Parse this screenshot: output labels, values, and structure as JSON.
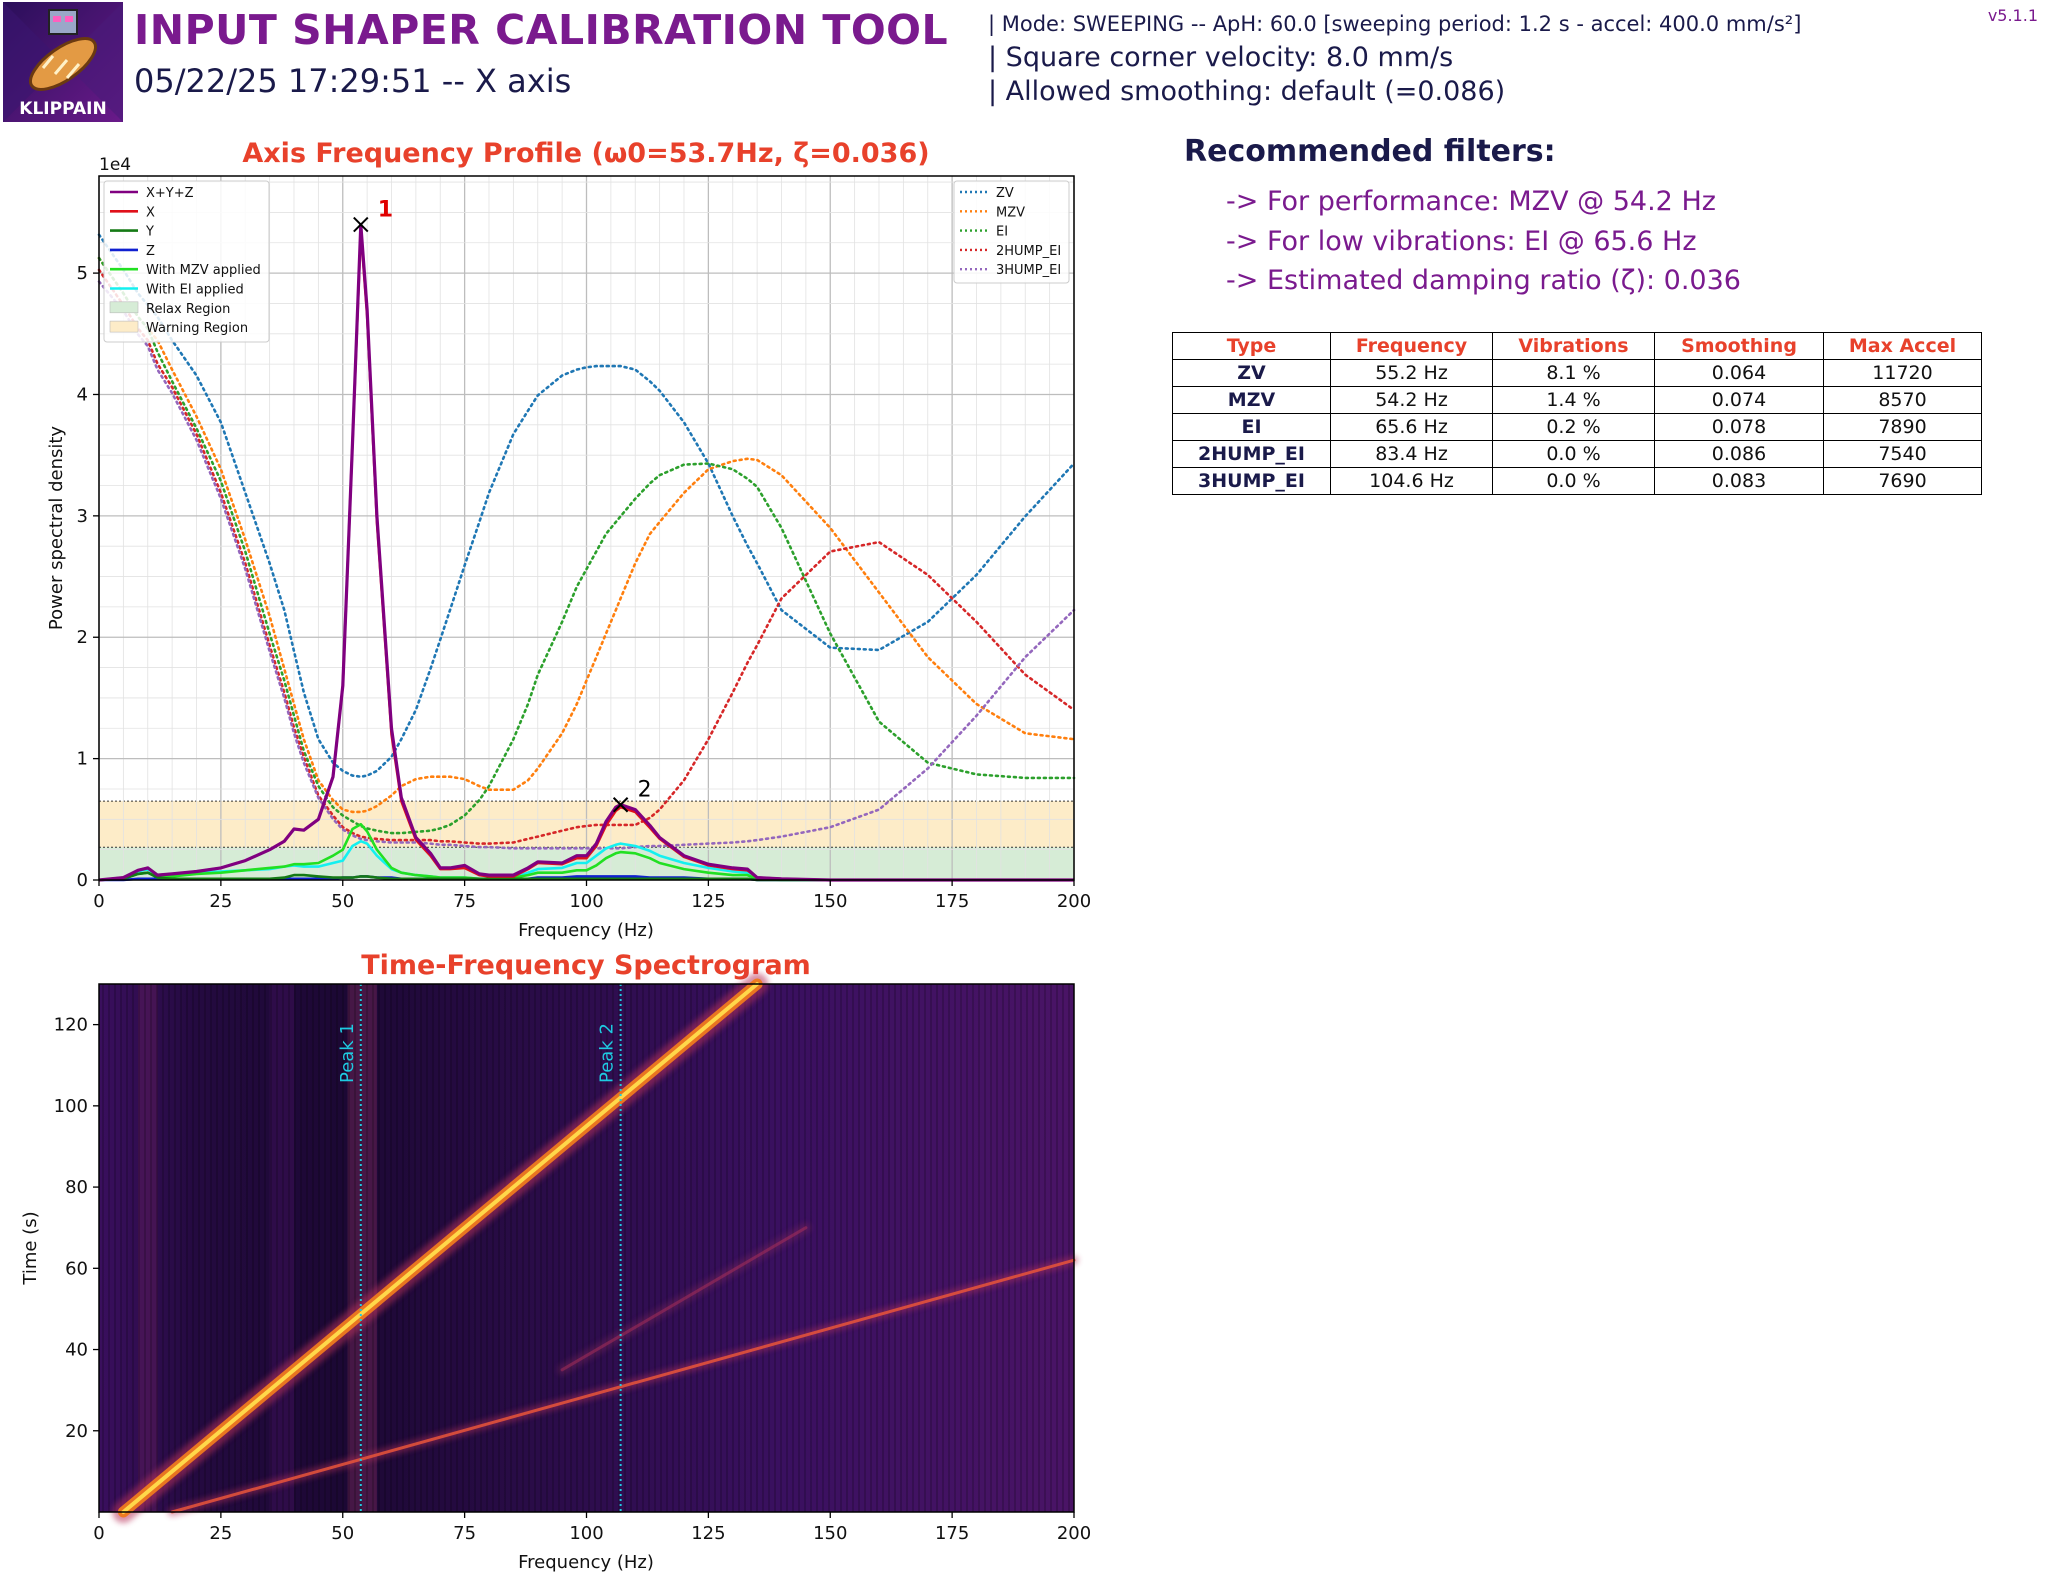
{
  "header": {
    "title": "INPUT SHAPER CALIBRATION TOOL",
    "subtitle": "05/22/25 17:29:51 -- X axis",
    "version": "v5.1.1",
    "logo_text": "KLIPPAIN",
    "mode_line": "| Mode: SWEEPING -- ApH: 60.0 [sweeping period: 1.2 s - accel: 400.0 mm/s²]",
    "scv_line": "| Square corner velocity: 8.0 mm/s",
    "smoothing_line": "| Allowed smoothing: default (=0.086)"
  },
  "recommendations": {
    "title": "Recommended filters:",
    "performance": "-> For performance: MZV @ 54.2 Hz",
    "low_vibrations": "-> For low vibrations: EI @ 65.6 Hz",
    "damping": "-> Estimated damping ratio (ζ): 0.036"
  },
  "table": {
    "headers": [
      "Type",
      "Frequency",
      "Vibrations",
      "Smoothing",
      "Max Accel"
    ],
    "rows": [
      [
        "ZV",
        "55.2 Hz",
        "8.1 %",
        "0.064",
        "11720"
      ],
      [
        "MZV",
        "54.2 Hz",
        "1.4 %",
        "0.074",
        "8570"
      ],
      [
        "EI",
        "65.6 Hz",
        "0.2 %",
        "0.078",
        "7890"
      ],
      [
        "2HUMP_EI",
        "83.4 Hz",
        "0.0 %",
        "0.086",
        "7540"
      ],
      [
        "3HUMP_EI",
        "104.6 Hz",
        "0.0 %",
        "0.083",
        "7690"
      ]
    ]
  },
  "colors": {
    "title_purple": "#7a1a8e",
    "chart_title_red": "#e8412b",
    "xyz": "#800080",
    "x": "#e0101a",
    "y": "#157a15",
    "z": "#1020d0",
    "mzv_applied": "#22e022",
    "ei_applied": "#14f0f0",
    "zv": "#1f77b4",
    "mzv": "#ff7f0e",
    "ei": "#2ca02c",
    "2hump_ei": "#d62728",
    "3hump_ei": "#9467bd",
    "relax": "#d6ecd6",
    "warning": "#fdecc8",
    "peak_line": "#1ecbe1"
  },
  "chart_data": [
    {
      "type": "line",
      "title": "Axis Frequency Profile (ω0=53.7Hz, ζ=0.036)",
      "xlabel": "Frequency (Hz)",
      "ylabel": "Power spectral density",
      "y_multiplier": "1e4",
      "xlim": [
        0,
        200
      ],
      "ylim": [
        0,
        5.8
      ],
      "xticks": [
        "0",
        "25",
        "50",
        "75",
        "100",
        "125",
        "150",
        "175",
        "200"
      ],
      "yticks": [
        "0",
        "1",
        "2",
        "3",
        "4",
        "5"
      ],
      "grid": true,
      "relax_region": [
        0,
        0.27
      ],
      "warning_region": [
        0.27,
        0.65
      ],
      "x": [
        0,
        5,
        8,
        10,
        12,
        15,
        20,
        25,
        30,
        35,
        38,
        40,
        42,
        45,
        48,
        50,
        52,
        53.7,
        55,
        57,
        60,
        62,
        65,
        68,
        70,
        72,
        75,
        78,
        80,
        85,
        88,
        90,
        95,
        98,
        100,
        102,
        104,
        106,
        107,
        110,
        113,
        115,
        120,
        125,
        130,
        133,
        135,
        140,
        150,
        160,
        170,
        180,
        190,
        200
      ],
      "series_left": [
        {
          "name": "X+Y+Z",
          "values": [
            0,
            0.02,
            0.08,
            0.1,
            0.04,
            0.05,
            0.07,
            0.1,
            0.16,
            0.25,
            0.32,
            0.42,
            0.41,
            0.5,
            0.85,
            1.6,
            3.6,
            5.4,
            4.7,
            3.0,
            1.25,
            0.68,
            0.35,
            0.22,
            0.1,
            0.1,
            0.12,
            0.05,
            0.04,
            0.04,
            0.1,
            0.15,
            0.14,
            0.2,
            0.2,
            0.3,
            0.48,
            0.6,
            0.62,
            0.58,
            0.45,
            0.35,
            0.2,
            0.13,
            0.1,
            0.09,
            0.02,
            0.01,
            0,
            0,
            0,
            0,
            0,
            0
          ]
        },
        {
          "name": "X",
          "values": [
            0,
            0.02,
            0.08,
            0.1,
            0.04,
            0.05,
            0.07,
            0.1,
            0.16,
            0.25,
            0.32,
            0.42,
            0.41,
            0.5,
            0.85,
            1.6,
            3.6,
            5.35,
            4.65,
            2.95,
            1.2,
            0.65,
            0.33,
            0.2,
            0.09,
            0.09,
            0.1,
            0.04,
            0.03,
            0.03,
            0.09,
            0.14,
            0.13,
            0.18,
            0.18,
            0.28,
            0.45,
            0.57,
            0.6,
            0.56,
            0.43,
            0.34,
            0.19,
            0.12,
            0.09,
            0.08,
            0.02,
            0.01,
            0,
            0,
            0,
            0,
            0,
            0
          ]
        },
        {
          "name": "Y",
          "values": [
            0,
            0.01,
            0.05,
            0.06,
            0.02,
            0.01,
            0.01,
            0.01,
            0.01,
            0.01,
            0.02,
            0.04,
            0.04,
            0.03,
            0.02,
            0.02,
            0.02,
            0.03,
            0.03,
            0.02,
            0.01,
            0.01,
            0.01,
            0.01,
            0.01,
            0.01,
            0.01,
            0.01,
            0.01,
            0.01,
            0.01,
            0.01,
            0.01,
            0.01,
            0.01,
            0.01,
            0.01,
            0.01,
            0.01,
            0.01,
            0.01,
            0.01,
            0.01,
            0.01,
            0.01,
            0.01,
            0,
            0,
            0,
            0,
            0,
            0,
            0,
            0
          ]
        },
        {
          "name": "Z",
          "values": [
            0,
            0,
            0.01,
            0.01,
            0.01,
            0.01,
            0.01,
            0.01,
            0.01,
            0.01,
            0.01,
            0.01,
            0.01,
            0.01,
            0.01,
            0.02,
            0.02,
            0.03,
            0.03,
            0.02,
            0.02,
            0.01,
            0.01,
            0.01,
            0.01,
            0.01,
            0.01,
            0.01,
            0.01,
            0.01,
            0.01,
            0.02,
            0.02,
            0.03,
            0.03,
            0.03,
            0.03,
            0.03,
            0.03,
            0.03,
            0.02,
            0.02,
            0.02,
            0.01,
            0.01,
            0.01,
            0,
            0,
            0,
            0,
            0,
            0,
            0,
            0
          ]
        },
        {
          "name": "With MZV applied",
          "values": [
            0,
            0.01,
            0.05,
            0.06,
            0.03,
            0.03,
            0.05,
            0.06,
            0.08,
            0.1,
            0.11,
            0.13,
            0.13,
            0.14,
            0.2,
            0.25,
            0.42,
            0.46,
            0.4,
            0.25,
            0.1,
            0.06,
            0.04,
            0.03,
            0.02,
            0.02,
            0.02,
            0.01,
            0.01,
            0.02,
            0.04,
            0.06,
            0.06,
            0.08,
            0.08,
            0.12,
            0.18,
            0.22,
            0.23,
            0.22,
            0.18,
            0.14,
            0.09,
            0.06,
            0.04,
            0.04,
            0.01,
            0,
            0,
            0,
            0,
            0,
            0,
            0
          ]
        },
        {
          "name": "With EI applied",
          "values": [
            0,
            0.01,
            0.07,
            0.09,
            0.04,
            0.05,
            0.06,
            0.07,
            0.08,
            0.09,
            0.11,
            0.12,
            0.11,
            0.11,
            0.14,
            0.16,
            0.28,
            0.32,
            0.3,
            0.2,
            0.09,
            0.06,
            0.04,
            0.03,
            0.02,
            0.02,
            0.02,
            0.01,
            0.01,
            0.02,
            0.06,
            0.09,
            0.1,
            0.14,
            0.14,
            0.2,
            0.26,
            0.29,
            0.3,
            0.28,
            0.24,
            0.2,
            0.14,
            0.1,
            0.07,
            0.06,
            0.02,
            0.01,
            0,
            0,
            0,
            0,
            0,
            0
          ]
        }
      ],
      "series_right": [
        {
          "name": "ZV",
          "values": [
            5.5,
            5.2,
            5.0,
            4.9,
            4.8,
            4.6,
            4.3,
            3.9,
            3.3,
            2.7,
            2.3,
            1.95,
            1.6,
            1.2,
            1.0,
            0.93,
            0.89,
            0.88,
            0.89,
            0.93,
            1.05,
            1.2,
            1.45,
            1.8,
            2.05,
            2.3,
            2.68,
            3.05,
            3.3,
            3.8,
            4.0,
            4.13,
            4.3,
            4.35,
            4.37,
            4.38,
            4.38,
            4.38,
            4.38,
            4.35,
            4.25,
            4.17,
            3.9,
            3.55,
            3.1,
            2.85,
            2.7,
            2.3,
            1.98,
            1.96,
            2.2,
            2.6,
            3.1,
            3.55
          ]
        },
        {
          "name": "MZV",
          "values": [
            5.3,
            5.0,
            4.8,
            4.7,
            4.6,
            4.35,
            3.95,
            3.5,
            2.9,
            2.25,
            1.8,
            1.5,
            1.2,
            0.85,
            0.68,
            0.6,
            0.58,
            0.58,
            0.59,
            0.63,
            0.72,
            0.8,
            0.86,
            0.88,
            0.88,
            0.88,
            0.86,
            0.8,
            0.77,
            0.77,
            0.85,
            0.95,
            1.25,
            1.5,
            1.7,
            1.9,
            2.1,
            2.3,
            2.4,
            2.7,
            2.95,
            3.05,
            3.3,
            3.5,
            3.57,
            3.59,
            3.58,
            3.45,
            3.0,
            2.45,
            1.9,
            1.5,
            1.25,
            1.2
          ]
        },
        {
          "name": "EI",
          "values": [
            5.3,
            5.0,
            4.8,
            4.7,
            4.5,
            4.25,
            3.85,
            3.4,
            2.8,
            2.1,
            1.7,
            1.4,
            1.1,
            0.8,
            0.62,
            0.55,
            0.5,
            0.46,
            0.44,
            0.42,
            0.4,
            0.4,
            0.41,
            0.42,
            0.44,
            0.47,
            0.55,
            0.68,
            0.8,
            1.2,
            1.5,
            1.75,
            2.2,
            2.5,
            2.65,
            2.8,
            2.95,
            3.05,
            3.1,
            3.25,
            3.38,
            3.45,
            3.54,
            3.55,
            3.5,
            3.42,
            3.35,
            3.0,
            2.1,
            1.35,
            1.0,
            0.9,
            0.87,
            0.87
          ]
        },
        {
          "name": "2HUMP_EI",
          "values": [
            5.2,
            4.9,
            4.7,
            4.6,
            4.4,
            4.2,
            3.8,
            3.3,
            2.7,
            2.0,
            1.6,
            1.3,
            1.05,
            0.72,
            0.55,
            0.45,
            0.4,
            0.37,
            0.36,
            0.35,
            0.34,
            0.34,
            0.34,
            0.34,
            0.33,
            0.33,
            0.32,
            0.31,
            0.31,
            0.32,
            0.35,
            0.37,
            0.42,
            0.45,
            0.46,
            0.47,
            0.47,
            0.47,
            0.47,
            0.47,
            0.53,
            0.6,
            0.85,
            1.2,
            1.6,
            1.85,
            2.0,
            2.4,
            2.8,
            2.88,
            2.6,
            2.2,
            1.75,
            1.45
          ]
        },
        {
          "name": "3HUMP_EI",
          "values": [
            5.1,
            4.85,
            4.65,
            4.55,
            4.35,
            4.15,
            3.75,
            3.25,
            2.65,
            1.95,
            1.55,
            1.25,
            1.0,
            0.7,
            0.52,
            0.43,
            0.38,
            0.35,
            0.34,
            0.33,
            0.32,
            0.32,
            0.32,
            0.31,
            0.3,
            0.3,
            0.29,
            0.28,
            0.28,
            0.27,
            0.27,
            0.27,
            0.27,
            0.27,
            0.27,
            0.27,
            0.27,
            0.27,
            0.27,
            0.28,
            0.29,
            0.29,
            0.3,
            0.31,
            0.32,
            0.33,
            0.34,
            0.37,
            0.45,
            0.6,
            0.95,
            1.4,
            1.9,
            2.3
          ]
        }
      ],
      "legend_left": [
        "X+Y+Z",
        "X",
        "Y",
        "Z",
        "With MZV applied",
        "With EI applied",
        "Relax Region",
        "Warning Region"
      ],
      "legend_right": [
        "ZV",
        "MZV",
        "EI",
        "2HUMP_EI",
        "3HUMP_EI"
      ],
      "peaks": [
        {
          "label": "1",
          "x": 53.7,
          "y": 5.4,
          "color": "#e00000",
          "bold": true
        },
        {
          "label": "2",
          "x": 107,
          "y": 0.62,
          "color": "#000000",
          "bold": false
        }
      ]
    },
    {
      "type": "heatmap",
      "title": "Time-Frequency Spectrogram",
      "xlabel": "Frequency (Hz)",
      "ylabel": "Time (s)",
      "xlim": [
        0,
        200
      ],
      "ylim": [
        0,
        130
      ],
      "xticks": [
        "0",
        "25",
        "50",
        "75",
        "100",
        "125",
        "150",
        "175",
        "200"
      ],
      "yticks": [
        "20",
        "40",
        "60",
        "80",
        "100",
        "120"
      ],
      "peak_markers": [
        {
          "label": "Peak 1",
          "x": 53.7
        },
        {
          "label": "Peak 2",
          "x": 107
        }
      ],
      "traces": [
        {
          "from": [
            5,
            0
          ],
          "to": [
            135,
            130
          ],
          "strength": "main"
        },
        {
          "from": [
            15,
            0
          ],
          "to": [
            200,
            62
          ],
          "strength": "secondary"
        },
        {
          "from": [
            95,
            35
          ],
          "to": [
            145,
            70
          ],
          "strength": "faint"
        }
      ],
      "colormap": "inferno"
    }
  ]
}
